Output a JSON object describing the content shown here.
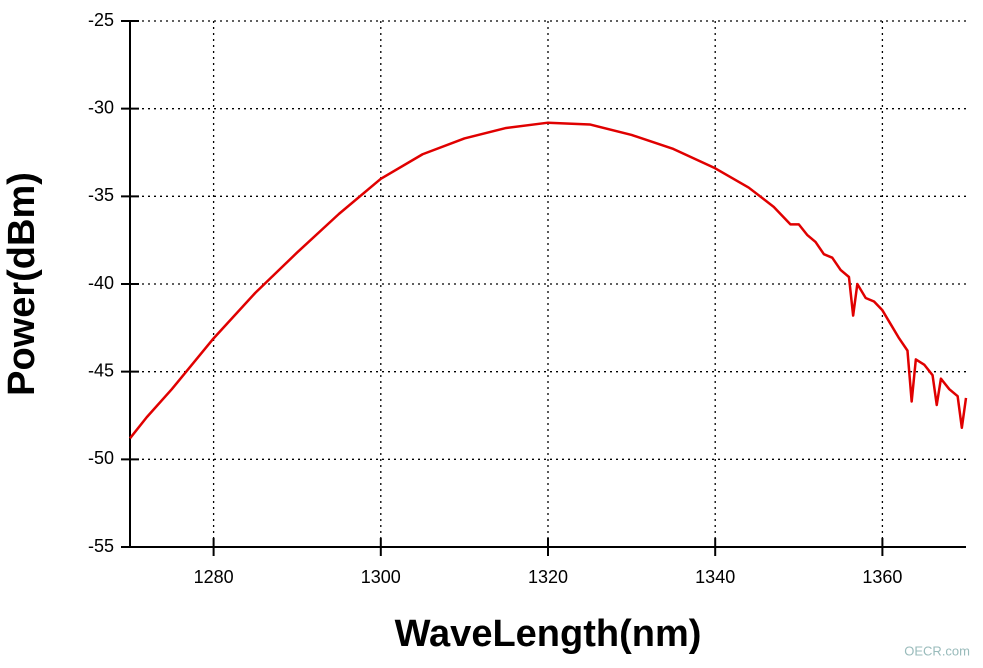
{
  "chart_data": {
    "type": "line",
    "x_label": "WaveLength(nm)",
    "y_label": "Power(dBm)",
    "watermark": "OECR.com",
    "xlim": [
      1270,
      1370
    ],
    "ylim": [
      -55,
      -25
    ],
    "xticks": [
      1280,
      1300,
      1320,
      1340,
      1360
    ],
    "yticks": [
      -55,
      -50,
      -45,
      -40,
      -35,
      -30,
      -25
    ],
    "grid": true,
    "x": [
      1270,
      1272,
      1275,
      1280,
      1285,
      1290,
      1295,
      1300,
      1305,
      1310,
      1315,
      1320,
      1325,
      1330,
      1335,
      1340,
      1344,
      1347,
      1349,
      1350,
      1351,
      1352,
      1353,
      1354,
      1355,
      1356,
      1356.5,
      1357,
      1358,
      1359,
      1360,
      1361,
      1362,
      1363,
      1363.5,
      1364,
      1365,
      1366,
      1366.5,
      1367,
      1368,
      1369,
      1369.5,
      1370
    ],
    "series": [
      {
        "color": "#e00000",
        "values": [
          -48.8,
          -47.6,
          -46.0,
          -43.1,
          -40.5,
          -38.2,
          -36.0,
          -34.0,
          -32.6,
          -31.7,
          -31.1,
          -30.8,
          -30.9,
          -31.5,
          -32.3,
          -33.4,
          -34.5,
          -35.6,
          -36.6,
          -36.6,
          -37.2,
          -37.6,
          -38.3,
          -38.5,
          -39.2,
          -39.6,
          -41.8,
          -40.0,
          -40.8,
          -41.0,
          -41.5,
          -42.3,
          -43.1,
          -43.8,
          -46.7,
          -44.3,
          -44.6,
          -45.2,
          -46.9,
          -45.4,
          -46.0,
          -46.4,
          -48.2,
          -46.5
        ]
      }
    ]
  }
}
